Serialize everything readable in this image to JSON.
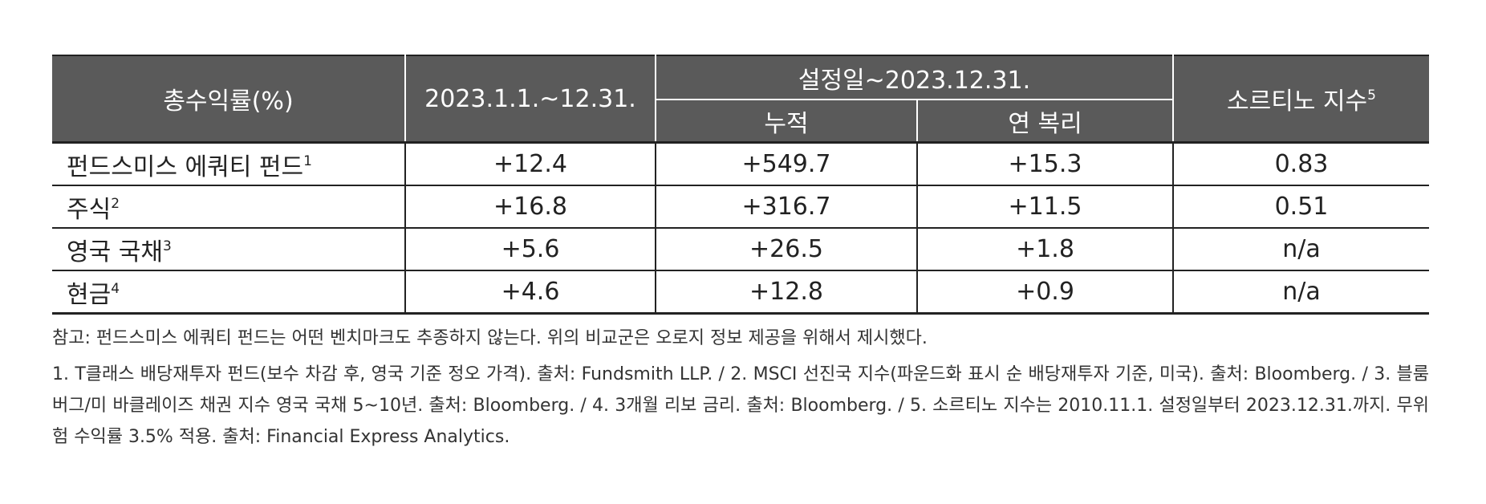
{
  "table": {
    "header": {
      "label": "총수익률(%)",
      "period": "2023.1.1.~12.31.",
      "since": "설정일~2023.12.31.",
      "cumulative": "누적",
      "annualized": "연 복리",
      "sortino": "소르티노 지수",
      "sortino_note": "5"
    },
    "rows": [
      {
        "label": "펀드스미스 에쿼티 펀드",
        "note": "1",
        "cells": [
          "+12.4",
          "+549.7",
          "+15.3",
          "0.83"
        ]
      },
      {
        "label": "주식",
        "note": "2",
        "cells": [
          "+16.8",
          "+316.7",
          "+11.5",
          "0.51"
        ]
      },
      {
        "label": "영국 국채",
        "note": "3",
        "cells": [
          "+5.6",
          "+26.5",
          "+1.8",
          "n/a"
        ]
      },
      {
        "label": "현금",
        "note": "4",
        "cells": [
          "+4.6",
          "+12.8",
          "+0.9",
          "n/a"
        ]
      }
    ]
  },
  "notes": {
    "remark": "참고: 펀드스미스 에쿼티 펀드는 어떤 벤치마크도 추종하지 않는다. 위의 비교군은 오로지 정보 제공을 위해서 제시했다.",
    "footnotes": "1. T클래스 배당재투자 펀드(보수 차감 후, 영국 기준 정오 가격). 출처: Fundsmith LLP. / 2. MSCI 선진국 지수(파운드화 표시 순 배당재투자 기준, 미국). 출처: Bloomberg. / 3. 블룸버그/미 바클레이즈 채권 지수 영국 국채 5~10년. 출처: Bloomberg. / 4. 3개월 리보 금리. 출처: Bloomberg. / 5. 소르티노 지수는 2010.11.1. 설정일부터 2023.12.31.까지. 무위험 수익률 3.5% 적용. 출처: Financial Express Analytics."
  }
}
